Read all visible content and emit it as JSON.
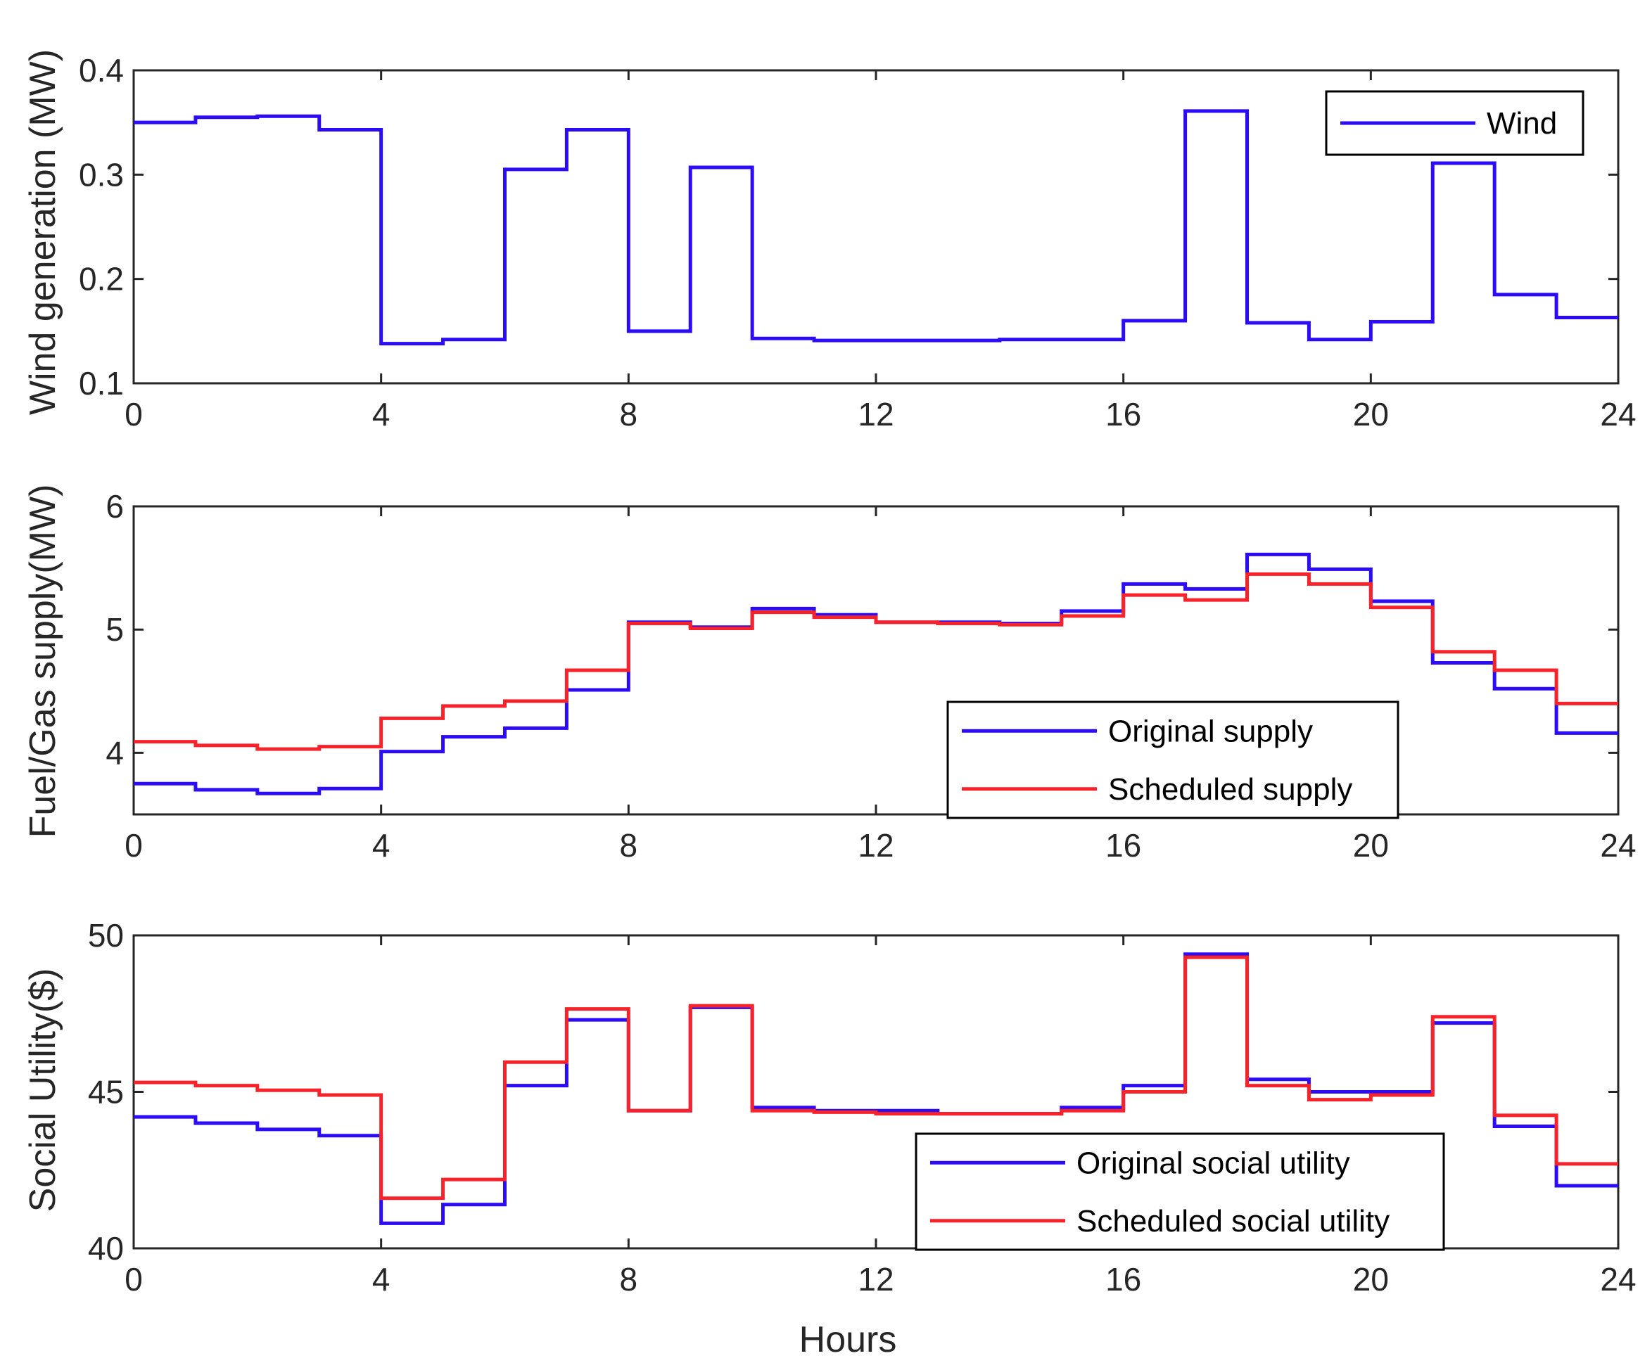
{
  "colors": {
    "blue": "#2b0cf5",
    "red": "#f6242a",
    "axis": "#262626"
  },
  "chart_data": [
    {
      "type": "line",
      "style": "stairs",
      "title": "",
      "xlabel": "",
      "ylabel": "Wind generation (MW)",
      "xlim": [
        0,
        24
      ],
      "ylim": [
        0.1,
        0.4
      ],
      "xticks": [
        "0",
        "4",
        "8",
        "12",
        "16",
        "20",
        "24"
      ],
      "yticks": [
        "0.1",
        "0.2",
        "0.3",
        "0.4"
      ],
      "legend_position": "top-right",
      "series": [
        {
          "name": "Wind",
          "color": "#2b0cf5",
          "values": [
            0.35,
            0.355,
            0.356,
            0.343,
            0.138,
            0.142,
            0.305,
            0.343,
            0.15,
            0.307,
            0.143,
            0.141,
            0.141,
            0.141,
            0.142,
            0.142,
            0.16,
            0.361,
            0.158,
            0.142,
            0.159,
            0.311,
            0.185,
            0.163
          ]
        }
      ]
    },
    {
      "type": "line",
      "style": "stairs",
      "title": "",
      "xlabel": "",
      "ylabel": "Fuel/Gas supply(MW)",
      "xlim": [
        0,
        24
      ],
      "ylim": [
        3.5,
        6
      ],
      "xticks": [
        "0",
        "4",
        "8",
        "12",
        "16",
        "20",
        "24"
      ],
      "yticks": [
        "4",
        "5",
        "6"
      ],
      "legend_position": "bottom-center",
      "series": [
        {
          "name": "Original supply",
          "color": "#2b0cf5",
          "values": [
            3.75,
            3.7,
            3.67,
            3.71,
            4.01,
            4.13,
            4.2,
            4.51,
            5.06,
            5.02,
            5.17,
            5.12,
            5.06,
            5.06,
            5.05,
            5.15,
            5.37,
            5.33,
            5.61,
            5.49,
            5.23,
            4.73,
            4.52,
            4.16
          ]
        },
        {
          "name": "Scheduled supply",
          "color": "#f6242a",
          "values": [
            4.09,
            4.06,
            4.03,
            4.05,
            4.28,
            4.38,
            4.42,
            4.67,
            5.05,
            5.01,
            5.14,
            5.1,
            5.06,
            5.05,
            5.04,
            5.11,
            5.28,
            5.24,
            5.45,
            5.37,
            5.18,
            4.82,
            4.67,
            4.4
          ]
        }
      ]
    },
    {
      "type": "line",
      "style": "stairs",
      "title": "",
      "xlabel": "Hours",
      "ylabel": "Social Utility($)",
      "xlim": [
        0,
        24
      ],
      "ylim": [
        40,
        50
      ],
      "xticks": [
        "0",
        "4",
        "8",
        "12",
        "16",
        "20",
        "24"
      ],
      "yticks": [
        "40",
        "45",
        "50"
      ],
      "legend_position": "bottom-center",
      "series": [
        {
          "name": "Original social utility",
          "color": "#2b0cf5",
          "values": [
            44.2,
            44.0,
            43.8,
            43.6,
            40.8,
            41.4,
            45.2,
            47.3,
            44.4,
            47.7,
            44.5,
            44.4,
            44.4,
            44.3,
            44.3,
            44.5,
            45.2,
            49.4,
            45.4,
            45.0,
            45.0,
            47.2,
            43.9,
            42.0
          ]
        },
        {
          "name": "Scheduled social utility",
          "color": "#f6242a",
          "values": [
            45.3,
            45.2,
            45.05,
            44.9,
            41.6,
            42.2,
            45.95,
            47.65,
            44.4,
            47.75,
            44.4,
            44.35,
            44.3,
            44.3,
            44.3,
            44.4,
            45.0,
            49.3,
            45.2,
            44.75,
            44.9,
            47.4,
            44.25,
            42.7
          ]
        }
      ]
    }
  ]
}
